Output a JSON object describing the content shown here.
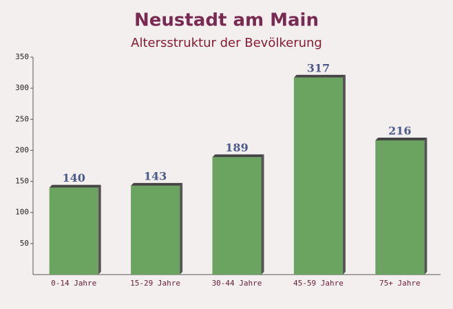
{
  "chart_data": {
    "type": "bar",
    "title": "Neustadt am Main",
    "subtitle": "Altersstruktur der Bevölkerung",
    "categories": [
      "0-14 Jahre",
      "15-29 Jahre",
      "30-44 Jahre",
      "45-59 Jahre",
      "75+ Jahre"
    ],
    "values": [
      140,
      143,
      189,
      317,
      216
    ],
    "color": "#6aa460",
    "ylim": [
      0,
      350
    ],
    "yticks": [
      50,
      100,
      150,
      200,
      250,
      300,
      350
    ],
    "grid": false
  }
}
